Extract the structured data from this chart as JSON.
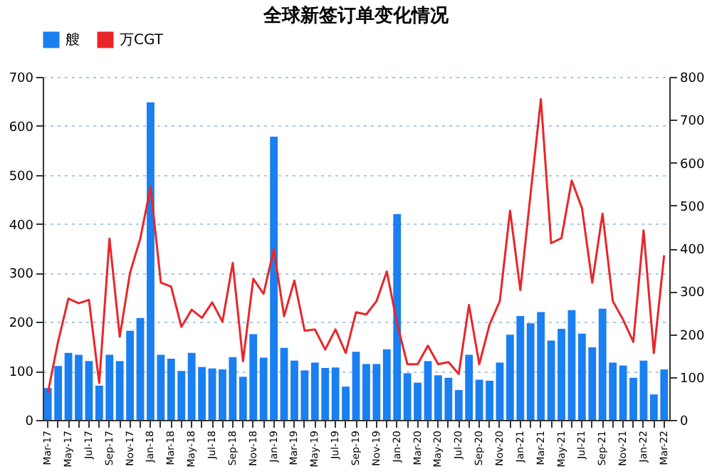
{
  "chart_data": {
    "type": "bar",
    "title": "全球新签订单变化情况",
    "categories": [
      "Mar-17",
      null,
      "May-17",
      null,
      "Jul-17",
      null,
      "Sep-17",
      null,
      "Nov-17",
      null,
      "Jan-18",
      null,
      "Mar-18",
      null,
      "May-18",
      null,
      "Jul-18",
      null,
      "Sep-18",
      null,
      "Nov-18",
      null,
      "Jan-19",
      null,
      "Mar-19",
      null,
      "May-19",
      null,
      "Jul-19",
      null,
      "Sep-19",
      null,
      "Nov-19",
      null,
      "Jan-20",
      null,
      "Mar-20",
      null,
      "May-20",
      null,
      "Jul-20",
      null,
      "Sep-20",
      null,
      "Nov-20",
      null,
      "Jan-21",
      null,
      "Mar-21",
      null,
      "May-21",
      null,
      "Jul-21",
      null,
      "Sep-21",
      null,
      "Nov-21",
      null,
      "Jan-22",
      null,
      "Mar-22"
    ],
    "series": [
      {
        "name": "艘",
        "type": "bar",
        "color": "#1a7ff0",
        "values": [
          65,
          110,
          137,
          133,
          120,
          70,
          133,
          120,
          182,
          208,
          648,
          133,
          125,
          100,
          137,
          108,
          105,
          103,
          128,
          88,
          175,
          127,
          578,
          147,
          121,
          101,
          117,
          106,
          107,
          68,
          139,
          114,
          114,
          144,
          420,
          95,
          76,
          120,
          91,
          86,
          61,
          133,
          82,
          80,
          117,
          174,
          212,
          197,
          220,
          162,
          186,
          224,
          176,
          148,
          227,
          117,
          111,
          86,
          121,
          52,
          103
        ]
      },
      {
        "name": "万CGT",
        "type": "line",
        "axis": "y2",
        "color": "#e8262a",
        "values": [
          63,
          183,
          283,
          272,
          280,
          86,
          423,
          194,
          343,
          423,
          543,
          320,
          311,
          217,
          257,
          238,
          274,
          229,
          366,
          137,
          329,
          294,
          398,
          242,
          325,
          208,
          211,
          164,
          211,
          156,
          251,
          246,
          277,
          346,
          225,
          130,
          130,
          173,
          130,
          135,
          107,
          268,
          130,
          222,
          277,
          488,
          303,
          528,
          748,
          412,
          424,
          558,
          494,
          320,
          481,
          277,
          234,
          182,
          442,
          156,
          384
        ]
      }
    ],
    "ylim": [
      0,
      700
    ],
    "yticks": [
      0,
      100,
      200,
      300,
      400,
      500,
      600,
      700
    ],
    "y2lim": [
      0,
      800
    ],
    "y2ticks": [
      0,
      100,
      200,
      300,
      400,
      500,
      600,
      700,
      800
    ],
    "grid": "y",
    "legend": "top"
  }
}
